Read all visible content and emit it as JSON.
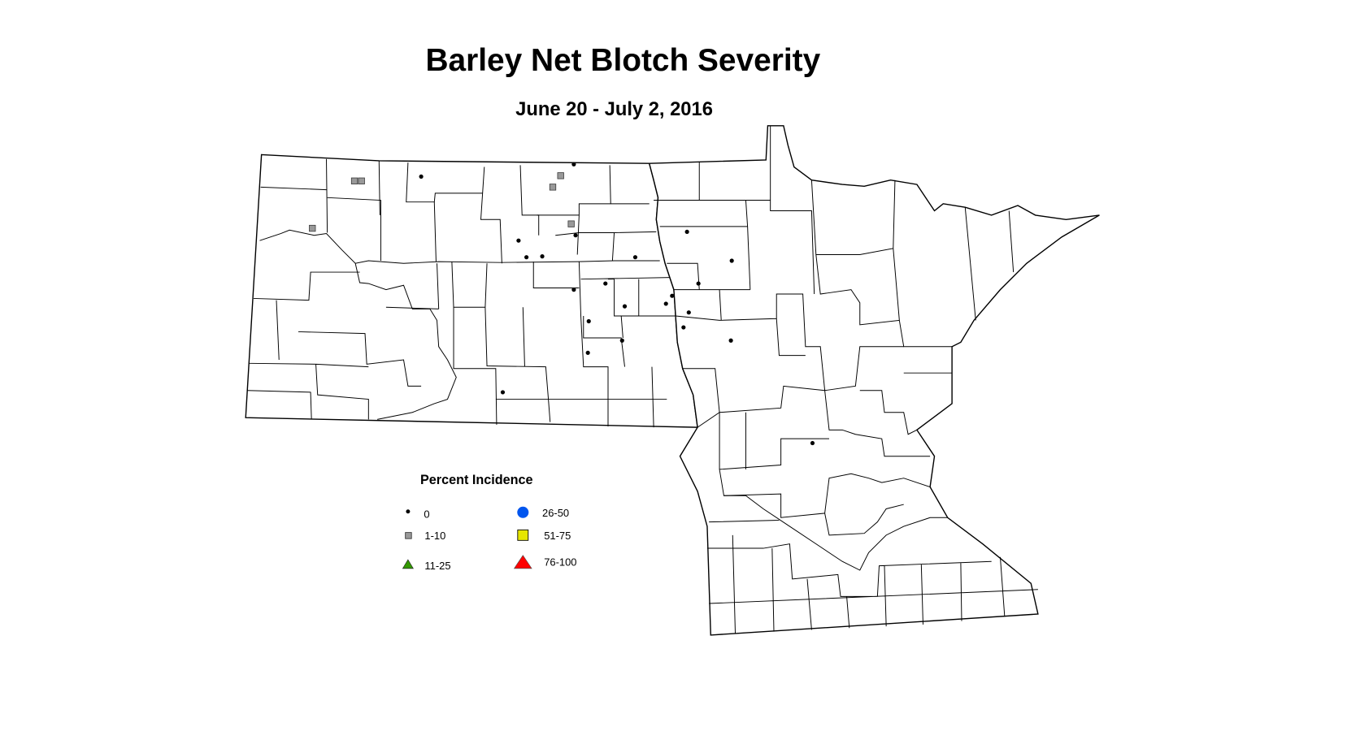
{
  "title": "Barley Net Blotch Severity",
  "subtitle": "June 20 - July 2, 2016",
  "legend": {
    "title": "Percent Incidence",
    "items": [
      {
        "label": "0",
        "symbol": "small-dot",
        "color": "#000000"
      },
      {
        "label": "1-10",
        "symbol": "square",
        "color": "#999999"
      },
      {
        "label": "11-25",
        "symbol": "triangle",
        "color": "#339900"
      },
      {
        "label": "26-50",
        "symbol": "circle",
        "color": "#0055ee"
      },
      {
        "label": "51-75",
        "symbol": "square",
        "color": "#e6e600"
      },
      {
        "label": "76-100",
        "symbol": "triangle",
        "color": "#ff0000"
      }
    ]
  },
  "observation_counts": {
    "0": 23,
    "1-10": 6,
    "11-25": 0,
    "26-50": 0,
    "51-75": 0,
    "76-100": 0
  }
}
